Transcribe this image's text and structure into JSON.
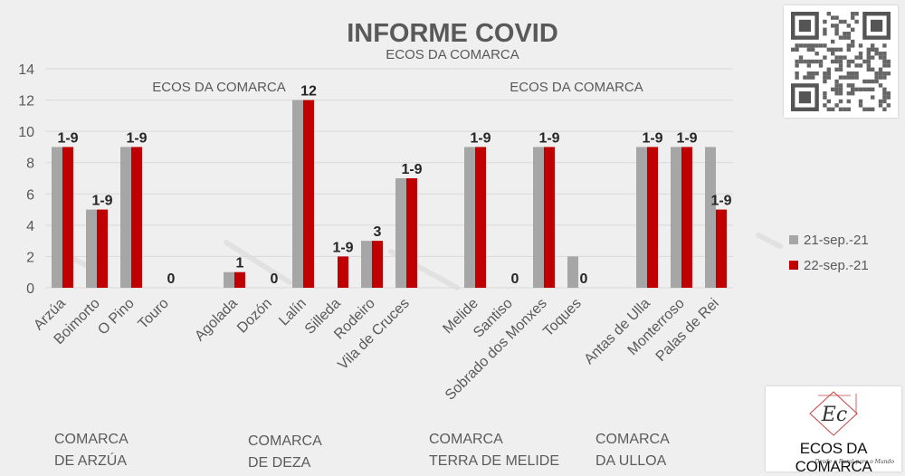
{
  "chart_data": {
    "type": "bar",
    "title": "INFORME COVID",
    "subtitle": "ECOS DA COMARCA",
    "watermarks": [
      "ECOS DA COMARCA",
      "ECOS DA COMARCA"
    ],
    "ylim": [
      0,
      14
    ],
    "yticks": [
      0,
      2,
      4,
      6,
      8,
      10,
      12,
      14
    ],
    "grid": true,
    "legend_position": "right",
    "series": [
      {
        "name": "21-sep.-21",
        "color": "#a6a6a6"
      },
      {
        "name": "22-sep.-21",
        "color": "#c00000"
      }
    ],
    "groups": [
      {
        "label_line1": "COMARCA",
        "label_line2": "DE ARZÚA",
        "categories": [
          {
            "name": "Arzúa",
            "values": [
              9,
              9
            ],
            "label": "1-9"
          },
          {
            "name": "Boimorto",
            "values": [
              5,
              5
            ],
            "label": "1-9"
          },
          {
            "name": "O Pino",
            "values": [
              9,
              9
            ],
            "label": "1-9"
          },
          {
            "name": "Touro",
            "values": [
              0,
              0
            ],
            "label": "0"
          }
        ]
      },
      {
        "label_line1": "COMARCA",
        "label_line2": "DE DEZA",
        "categories": [
          {
            "name": "Agolada",
            "values": [
              1,
              1
            ],
            "label": "1"
          },
          {
            "name": "Dozón",
            "values": [
              0,
              0
            ],
            "label": "0"
          },
          {
            "name": "Lalín",
            "values": [
              12,
              12
            ],
            "label": "12"
          },
          {
            "name": "Silleda",
            "values": [
              0,
              2
            ],
            "label": "1-9"
          },
          {
            "name": "Rodeiro",
            "values": [
              3,
              3
            ],
            "label": "3"
          },
          {
            "name": "Vila de Cruces",
            "values": [
              7,
              7
            ],
            "label": "1-9"
          }
        ]
      },
      {
        "label_line1": "COMARCA",
        "label_line2": "TERRA DE MELIDE",
        "categories": [
          {
            "name": "Melide",
            "values": [
              9,
              9
            ],
            "label": "1-9"
          },
          {
            "name": "Santiso",
            "values": [
              0,
              0
            ],
            "label": "0"
          },
          {
            "name": "Sobrado dos Monxes",
            "values": [
              9,
              9
            ],
            "label": "1-9"
          },
          {
            "name": "Toques",
            "values": [
              2,
              0
            ],
            "label": "0"
          }
        ]
      },
      {
        "label_line1": "COMARCA",
        "label_line2": "DA ULLOA",
        "categories": [
          {
            "name": "Antas de Ulla",
            "values": [
              9,
              9
            ],
            "label": "1-9"
          },
          {
            "name": "Monterroso",
            "values": [
              9,
              9
            ],
            "label": "1-9"
          },
          {
            "name": "Palas de Rei",
            "values": [
              9,
              5
            ],
            "label": "1-9"
          }
        ]
      }
    ]
  },
  "logo": {
    "text": "ECOS DA COMARCA",
    "tagline": "Desde o Rural para o Mundo",
    "monogram": "Ec"
  },
  "qr_icon": "qr-code-icon"
}
